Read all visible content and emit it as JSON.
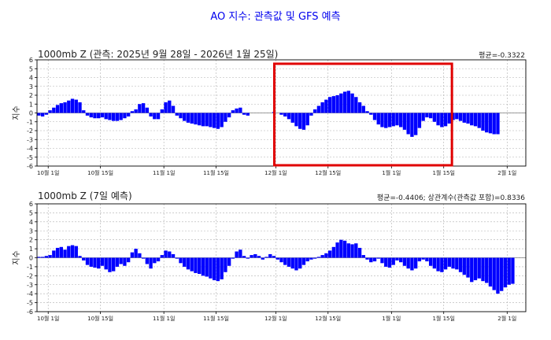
{
  "title": "AO 지수: 관측값 및 GFS 예측",
  "colors": {
    "bar": "#0000ff",
    "highlight": "#e00000",
    "grid": "#b0b0b0",
    "zero": "#808080",
    "title": "#0000ee"
  },
  "chart_data": [
    {
      "type": "bar",
      "title": "1000mb Z (관측: 2025년 9월 28일 - 2026년 1월 25일)",
      "stat": "평균=-0.3322",
      "ylabel": "지수",
      "ylim": [
        -6,
        6
      ],
      "yticks": [
        -6,
        -5,
        -4,
        -3,
        -2,
        -1,
        0,
        1,
        2,
        3,
        4,
        5,
        6
      ],
      "xticks": [
        {
          "day": 3,
          "label": "10월 1일"
        },
        {
          "day": 17,
          "label": "10월 15일"
        },
        {
          "day": 34,
          "label": "11월 1일"
        },
        {
          "day": 48,
          "label": "11월 15일"
        },
        {
          "day": 64,
          "label": "12월 1일"
        },
        {
          "day": 78,
          "label": "12월 15일"
        },
        {
          "day": 95,
          "label": "1월 1일"
        },
        {
          "day": 109,
          "label": "1월 15일"
        },
        {
          "day": 126,
          "label": "2월 1일"
        }
      ],
      "highlight_range": [
        63.6,
        111.2
      ],
      "values": [
        -0.3,
        -0.4,
        -0.2,
        0.3,
        0.6,
        0.9,
        1.1,
        1.2,
        1.4,
        1.6,
        1.5,
        1.2,
        0.3,
        -0.3,
        -0.5,
        -0.6,
        -0.6,
        -0.5,
        -0.7,
        -0.8,
        -0.9,
        -0.9,
        -0.8,
        -0.6,
        -0.4,
        0.2,
        0.4,
        1.0,
        1.1,
        0.6,
        -0.4,
        -0.7,
        -0.7,
        0.4,
        1.2,
        1.4,
        0.8,
        -0.3,
        -0.6,
        -0.9,
        -1.1,
        -1.2,
        -1.3,
        -1.4,
        -1.5,
        -1.5,
        -1.6,
        -1.7,
        -1.8,
        -1.6,
        -1.0,
        -0.5,
        0.3,
        0.5,
        0.6,
        -0.2,
        -0.3,
        0,
        0,
        0,
        0,
        0,
        0,
        0.1,
        0,
        -0.2,
        -0.4,
        -0.7,
        -1.1,
        -1.5,
        -1.8,
        -1.9,
        -1.4,
        -0.3,
        0.4,
        0.8,
        1.2,
        1.5,
        1.8,
        1.9,
        2.0,
        2.2,
        2.4,
        2.5,
        2.2,
        1.8,
        1.2,
        0.8,
        0.2,
        -0.2,
        -0.8,
        -1.3,
        -1.6,
        -1.7,
        -1.6,
        -1.5,
        -1.4,
        -1.6,
        -1.9,
        -2.4,
        -2.7,
        -2.5,
        -1.7,
        -0.9,
        -0.5,
        -0.6,
        -1.0,
        -1.4,
        -1.6,
        -1.5,
        -1.2,
        -0.8,
        -0.7,
        -0.9,
        -1.1,
        -1.2,
        -1.4,
        -1.5,
        -1.7,
        -2.0,
        -2.2,
        -2.3,
        -2.4,
        -2.4
      ]
    },
    {
      "type": "bar",
      "title": "1000mb Z (7일 예측)",
      "stat": "평균=-0.4406; 상관계수(관측값 포함)=0.8336",
      "ylabel": "지수",
      "ylim": [
        -6,
        6
      ],
      "yticks": [
        -6,
        -5,
        -4,
        -3,
        -2,
        -1,
        0,
        1,
        2,
        3,
        4,
        5,
        6
      ],
      "xticks": [
        {
          "day": 3,
          "label": "10월 1일"
        },
        {
          "day": 17,
          "label": "10월 15일"
        },
        {
          "day": 34,
          "label": "11월 1일"
        },
        {
          "day": 48,
          "label": "11월 15일"
        },
        {
          "day": 64,
          "label": "12월 1일"
        },
        {
          "day": 78,
          "label": "12월 15일"
        },
        {
          "day": 95,
          "label": "1월 1일"
        },
        {
          "day": 109,
          "label": "1월 15일"
        },
        {
          "day": 126,
          "label": "2월 1일"
        }
      ],
      "values": [
        0.1,
        0.1,
        0.2,
        0.3,
        0.8,
        1.1,
        1.2,
        0.9,
        1.3,
        1.4,
        1.3,
        0.2,
        -0.3,
        -0.8,
        -1.0,
        -1.1,
        -1.2,
        -0.9,
        -1.3,
        -1.6,
        -1.5,
        -1.0,
        -0.7,
        -0.9,
        -0.5,
        0.6,
        1.0,
        0.5,
        -0.1,
        -0.7,
        -1.2,
        -0.6,
        -0.4,
        0.3,
        0.8,
        0.7,
        0.4,
        -0.1,
        -0.6,
        -1.0,
        -1.3,
        -1.5,
        -1.7,
        -1.8,
        -2.0,
        -2.1,
        -2.3,
        -2.5,
        -2.6,
        -2.4,
        -1.6,
        -0.9,
        -0.1,
        0.7,
        0.9,
        0.2,
        -0.1,
        0.3,
        0.4,
        0.2,
        -0.2,
        0.1,
        0.4,
        0.2,
        -0.2,
        -0.5,
        -0.8,
        -1.0,
        -1.2,
        -1.4,
        -1.2,
        -0.8,
        -0.4,
        -0.2,
        -0.1,
        0.1,
        0.3,
        0.5,
        0.8,
        1.2,
        1.7,
        2.0,
        1.9,
        1.6,
        1.5,
        1.6,
        1.1,
        0.3,
        -0.2,
        -0.5,
        -0.4,
        -0.1,
        -0.6,
        -1.0,
        -1.1,
        -0.8,
        -0.3,
        -0.5,
        -0.9,
        -1.2,
        -1.4,
        -1.2,
        -0.4,
        -0.2,
        -0.4,
        -0.9,
        -1.2,
        -1.5,
        -1.6,
        -1.3,
        -1.0,
        -1.2,
        -1.3,
        -1.6,
        -1.9,
        -2.2,
        -2.7,
        -2.5,
        -2.3,
        -2.6,
        -2.8,
        -3.2,
        -3.6,
        -4.0,
        -3.7,
        -3.3,
        -3.0,
        -2.9
      ]
    }
  ]
}
